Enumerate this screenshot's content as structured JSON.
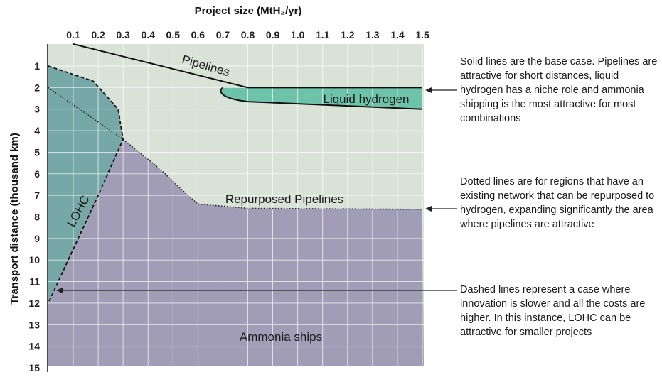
{
  "chart_data": {
    "type": "area",
    "title": "",
    "xlabel": "Project size (MtH₂/yr)",
    "ylabel": "Transport distance (thousand km)",
    "x_ticks": [
      "0.1",
      "0.2",
      "0.3",
      "0.4",
      "0.5",
      "0.6",
      "0.7",
      "0.8",
      "0.9",
      "1.0",
      "1.1",
      "1.2",
      "1.3",
      "1.4",
      "1.5"
    ],
    "y_ticks": [
      "1",
      "2",
      "3",
      "4",
      "5",
      "6",
      "7",
      "8",
      "9",
      "10",
      "11",
      "12",
      "13",
      "14",
      "15"
    ],
    "xlim": [
      0.0,
      1.5
    ],
    "ylim": [
      0,
      15
    ],
    "y_inverted": true,
    "x_axis_position": "top",
    "grid": true,
    "regions": [
      {
        "name": "Pipelines",
        "color": "#a9d5d6"
      },
      {
        "name": "Liquid hydrogen",
        "color": "#6cc3a8"
      },
      {
        "name": "Repurposed Pipelines",
        "color": "#d8e2d7"
      },
      {
        "name": "LOHC",
        "color": "#75a8a6"
      },
      {
        "name": "Ammonia ships",
        "color": "#a29db6"
      }
    ],
    "series": [
      {
        "style": "solid",
        "role": "Pipelines lower boundary",
        "points": [
          [
            0.1,
            0.0
          ],
          [
            0.8,
            2.0
          ],
          [
            1.5,
            2.0
          ]
        ]
      },
      {
        "style": "solid",
        "role": "Liquid hydrogen lower boundary",
        "points": [
          [
            0.7,
            2.0
          ],
          [
            0.7,
            2.5
          ],
          [
            0.8,
            2.65
          ],
          [
            1.5,
            3.0
          ]
        ]
      },
      {
        "style": "dotted",
        "role": "Repurposed pipelines boundary",
        "points": [
          [
            0.0,
            2.0
          ],
          [
            0.3,
            4.4
          ],
          [
            0.45,
            5.8
          ],
          [
            0.55,
            6.9
          ],
          [
            0.6,
            7.4
          ],
          [
            0.8,
            7.6
          ],
          [
            1.5,
            7.65
          ]
        ]
      },
      {
        "style": "dashed",
        "role": "LOHC boundary",
        "points": [
          [
            0.0,
            1.0
          ],
          [
            0.18,
            1.7
          ],
          [
            0.28,
            3.0
          ],
          [
            0.3,
            4.4
          ],
          [
            0.2,
            7.0
          ],
          [
            0.0,
            12.0
          ]
        ]
      }
    ],
    "annotations": [
      "Solid lines are the base case. Pipelines are attractive for short distances, liquid hydrogen has a niche role and ammonia shipping is the most attractive for most combinations",
      "Dotted lines are for regions that have an existing network that can be repurposed to hydrogen, expanding significantly the area where pipelines are attractive",
      "Dashed lines represent a case where innovation is slower and all the costs are higher. In this instance, LOHC can be attractive for smaller projects"
    ]
  }
}
